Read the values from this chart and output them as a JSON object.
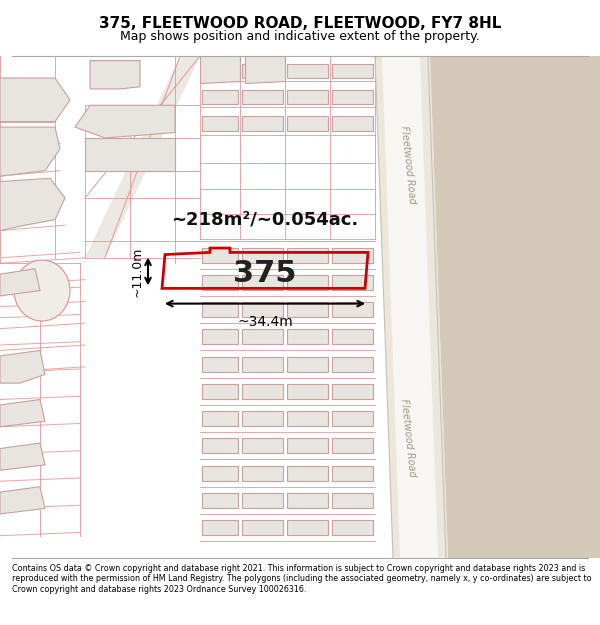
{
  "title": "375, FLEETWOOD ROAD, FLEETWOOD, FY7 8HL",
  "subtitle": "Map shows position and indicative extent of the property.",
  "footer": "Contains OS data © Crown copyright and database right 2021. This information is subject to Crown copyright and database rights 2023 and is reproduced with the permission of HM Land Registry. The polygons (including the associated geometry, namely x, y co-ordinates) are subject to Crown copyright and database rights 2023 Ordnance Survey 100026316.",
  "area_label": "~218m²/~0.054ac.",
  "width_label": "~34.4m",
  "height_label": "~11.0m",
  "plot_number": "375",
  "map_bg": "#ffffff",
  "road_fill": "#ede8e0",
  "road_white": "#f8f6f2",
  "road_sand": "#d9cfc4",
  "bld_fill": "#e8e4e0",
  "bld_edge": "#c8a0a0",
  "lot_color": "#e09090",
  "plot_edge": "#cc0000",
  "road_label_color": "#b0aaa0",
  "title_color": "#000000",
  "footer_color": "#000000",
  "dim_color": "#000000",
  "title_fontsize": 11,
  "subtitle_fontsize": 9,
  "footer_fontsize": 5.8
}
